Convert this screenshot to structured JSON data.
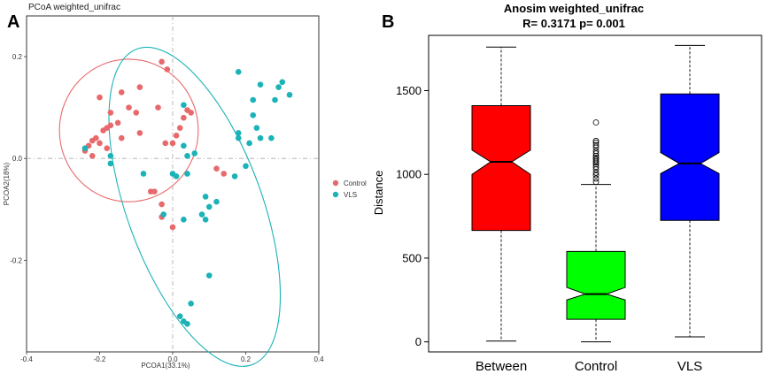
{
  "colors": {
    "control": "#e8696b",
    "vls": "#1bb3b8",
    "between_box": "#ff0000",
    "control_box": "#00ff00",
    "vls_box": "#0000ff"
  },
  "panels": {
    "a": {
      "letter": "A"
    },
    "b": {
      "letter": "B"
    }
  },
  "chart_data": [
    {
      "type": "scatter",
      "title": "PCoA weighted_unifrac",
      "xlabel": "PCOA1(33.1%)",
      "ylabel": "PCOA2(18%)",
      "xlim": [
        -0.4,
        0.4
      ],
      "ylim": [
        -0.38,
        0.28
      ],
      "xticks": [
        -0.4,
        -0.2,
        0.0,
        0.2,
        0.4
      ],
      "xtick_labels": [
        "-0.4",
        "-0.2",
        "0.0",
        "0.2",
        "0.4"
      ],
      "yticks": [
        -0.2,
        0.0,
        0.2
      ],
      "ytick_labels": [
        "-0.2",
        "0.0",
        "0.2"
      ],
      "legend": {
        "position": "right",
        "entries": [
          "Control",
          "VLS"
        ]
      },
      "ellipses": [
        {
          "series": "Control",
          "center": [
            -0.12,
            0.055
          ],
          "radius_x": 0.19,
          "radius_y": 0.14
        },
        {
          "series": "VLS",
          "center": [
            0.06,
            -0.095
          ],
          "radius_x": 0.185,
          "radius_y": 0.33,
          "rotation_deg": -20
        }
      ],
      "series": [
        {
          "name": "Control",
          "points": [
            [
              -0.03,
              0.19
            ],
            [
              -0.015,
              0.175
            ],
            [
              -0.09,
              0.14
            ],
            [
              -0.14,
              0.13
            ],
            [
              -0.2,
              0.12
            ],
            [
              -0.17,
              0.09
            ],
            [
              -0.12,
              0.1
            ],
            [
              -0.1,
              0.09
            ],
            [
              -0.04,
              0.1
            ],
            [
              0.04,
              0.095
            ],
            [
              0.05,
              0.09
            ],
            [
              -0.15,
              0.07
            ],
            [
              -0.17,
              0.065
            ],
            [
              -0.18,
              0.06
            ],
            [
              -0.19,
              0.055
            ],
            [
              -0.21,
              0.04
            ],
            [
              -0.14,
              0.04
            ],
            [
              -0.2,
              0.03
            ],
            [
              -0.22,
              0.035
            ],
            [
              -0.23,
              0.025
            ],
            [
              -0.24,
              0.015
            ],
            [
              -0.18,
              0.02
            ],
            [
              -0.22,
              0.005
            ],
            [
              -0.09,
              0.05
            ],
            [
              0.03,
              0.08
            ],
            [
              0.02,
              0.06
            ],
            [
              0.01,
              0.045
            ],
            [
              -0.02,
              0.03
            ],
            [
              0.0,
              0.03
            ],
            [
              0.14,
              -0.03
            ],
            [
              0.12,
              -0.02
            ],
            [
              -0.05,
              -0.065
            ],
            [
              -0.06,
              -0.065
            ],
            [
              -0.03,
              -0.09
            ],
            [
              -0.03,
              -0.115
            ],
            [
              0.0,
              -0.135
            ]
          ]
        },
        {
          "name": "VLS",
          "points": [
            [
              0.18,
              0.17
            ],
            [
              0.24,
              0.145
            ],
            [
              0.29,
              0.14
            ],
            [
              0.3,
              0.15
            ],
            [
              0.32,
              0.125
            ],
            [
              0.22,
              0.115
            ],
            [
              0.28,
              0.115
            ],
            [
              0.03,
              0.105
            ],
            [
              0.22,
              0.085
            ],
            [
              0.18,
              0.05
            ],
            [
              0.23,
              0.06
            ],
            [
              0.24,
              0.04
            ],
            [
              0.27,
              0.04
            ],
            [
              0.18,
              0.04
            ],
            [
              0.21,
              0.03
            ],
            [
              0.03,
              0.025
            ],
            [
              0.06,
              0.01
            ],
            [
              0.04,
              0.005
            ],
            [
              -0.17,
              0.005
            ],
            [
              -0.24,
              0.02
            ],
            [
              -0.17,
              -0.01
            ],
            [
              0.2,
              -0.015
            ],
            [
              0.17,
              -0.035
            ],
            [
              -0.08,
              -0.03
            ],
            [
              0.0,
              -0.03
            ],
            [
              0.01,
              -0.035
            ],
            [
              0.04,
              -0.03
            ],
            [
              0.09,
              -0.075
            ],
            [
              0.12,
              -0.085
            ],
            [
              0.1,
              -0.095
            ],
            [
              0.08,
              -0.11
            ],
            [
              -0.025,
              -0.11
            ],
            [
              0.03,
              -0.12
            ],
            [
              0.09,
              -0.12
            ],
            [
              0.1,
              -0.23
            ],
            [
              0.05,
              -0.285
            ],
            [
              0.02,
              -0.31
            ],
            [
              0.03,
              -0.32
            ],
            [
              0.04,
              -0.325
            ]
          ]
        }
      ]
    },
    {
      "type": "box",
      "title": "Anosim weighted_unifrac",
      "subtitle": "R= 0.3171 p= 0.001",
      "xlabel": "",
      "ylabel": "Distance",
      "ylim": [
        -60,
        1830
      ],
      "yticks": [
        0,
        500,
        1000,
        1500
      ],
      "ytick_labels": [
        "0",
        "500",
        "1000",
        "1500"
      ],
      "categories": [
        "Between",
        "Control",
        "VLS"
      ],
      "boxes": [
        {
          "name": "Between",
          "min": 5,
          "q1": 665,
          "median": 1075,
          "q3": 1410,
          "max": 1760,
          "notch_low": 1000,
          "notch_high": 1145,
          "outliers": []
        },
        {
          "name": "Control",
          "min": 0,
          "q1": 135,
          "median": 285,
          "q3": 540,
          "max": 940,
          "notch_low": 250,
          "notch_high": 325,
          "outliers": [
            955,
            975,
            995,
            1010,
            1030,
            1045,
            1060,
            1070,
            1080,
            1090,
            1100,
            1110,
            1125,
            1140,
            1160,
            1175,
            1190,
            1200,
            1310
          ]
        },
        {
          "name": "VLS",
          "min": 30,
          "q1": 725,
          "median": 1065,
          "q3": 1480,
          "max": 1770,
          "notch_low": 1005,
          "notch_high": 1130,
          "outliers": []
        }
      ]
    }
  ]
}
